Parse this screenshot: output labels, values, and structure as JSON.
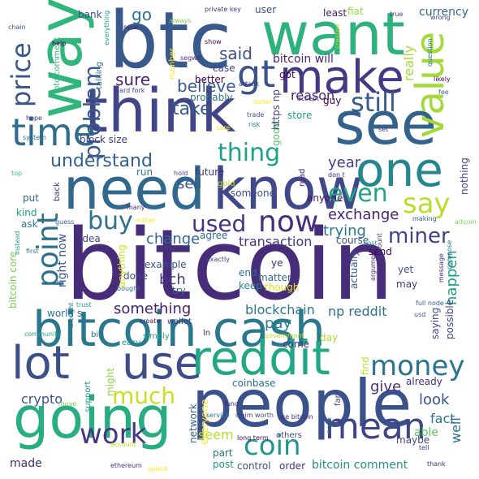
{
  "words": [
    {
      "text": "bitcoin",
      "color": "#472c7a"
    },
    {
      "text": "people",
      "color": "#3b518b"
    },
    {
      "text": "bitcoin cash",
      "color": "#2a788e"
    },
    {
      "text": "think",
      "color": "#414487"
    },
    {
      "text": "need",
      "color": "#31688e"
    },
    {
      "text": "know",
      "color": "#3f4889"
    },
    {
      "text": "btc",
      "color": "#38598c"
    },
    {
      "text": "want",
      "color": "#2db27d"
    },
    {
      "text": "going",
      "color": "#27ad81"
    },
    {
      "text": "use",
      "color": "#3e4c8a"
    },
    {
      "text": "reddit",
      "color": "#22a785"
    },
    {
      "text": "see",
      "color": "#33638d"
    },
    {
      "text": "way",
      "color": "#30b57c"
    },
    {
      "text": "make",
      "color": "#443983"
    },
    {
      "text": "one",
      "color": "#24878e"
    },
    {
      "text": "time",
      "color": "#2e6d8e"
    },
    {
      "text": "value",
      "color": "#a2da37"
    },
    {
      "text": "lot",
      "color": "#3c4f8a"
    },
    {
      "text": "mean",
      "color": "#404588"
    },
    {
      "text": "coin",
      "color": "#1f968b"
    },
    {
      "text": "work",
      "color": "#453781"
    },
    {
      "text": "money",
      "color": "#2b748e"
    },
    {
      "text": "say",
      "color": "#b8de29"
    },
    {
      "text": "point",
      "color": "#2c718e"
    },
    {
      "text": "price",
      "color": "#39568c"
    },
    {
      "text": "used",
      "color": "#46327e"
    },
    {
      "text": "now",
      "color": "#472d7b"
    },
    {
      "text": "gt",
      "color": "#3b528b"
    },
    {
      "text": "still",
      "color": "#375a8c"
    },
    {
      "text": "thing",
      "color": "#1fa088"
    },
    {
      "text": "even",
      "color": "#20a486"
    },
    {
      "text": "buy",
      "color": "#2d718e"
    },
    {
      "text": "much",
      "color": "#c8e020"
    },
    {
      "text": "problem",
      "color": "#38598c"
    },
    {
      "text": "miner",
      "color": "#424186"
    },
    {
      "text": "go",
      "color": "#2e6e8e"
    },
    {
      "text": "believe",
      "color": "#375b8d"
    },
    {
      "text": "said",
      "color": "#3d4d8a"
    },
    {
      "text": "take",
      "color": "#38598c"
    },
    {
      "text": "sure",
      "color": "#482475"
    },
    {
      "text": "understand",
      "color": "#34618d"
    },
    {
      "text": "sell",
      "color": "#3a548c"
    },
    {
      "text": "year",
      "color": "#414287"
    },
    {
      "text": "reason",
      "color": "#481f70"
    },
    {
      "text": "bitcoin will",
      "color": "#482677"
    },
    {
      "text": "change",
      "color": "#31678e"
    },
    {
      "text": "exchange",
      "color": "#482374"
    },
    {
      "text": "trying",
      "color": "#2a778e"
    },
    {
      "text": "transaction",
      "color": "#453581"
    },
    {
      "text": "right now",
      "color": "#39568c"
    },
    {
      "text": "something",
      "color": "#482374"
    },
    {
      "text": "blockchain",
      "color": "#2a788e"
    },
    {
      "text": "np reddit",
      "color": "#2d708e"
    },
    {
      "text": "pay",
      "color": "#26828e"
    },
    {
      "text": "bch",
      "color": "#453882"
    },
    {
      "text": "crypto",
      "color": "#3b528b"
    },
    {
      "text": "give",
      "color": "#46337f"
    },
    {
      "text": "look",
      "color": "#39558c"
    },
    {
      "text": "fact",
      "color": "#2c728e"
    },
    {
      "text": "well",
      "color": "#2d708e"
    },
    {
      "text": "seem",
      "color": "#b5de2b"
    },
    {
      "text": "happen",
      "color": "#1fa187"
    },
    {
      "text": "really",
      "color": "#a5db36"
    },
    {
      "text": "currency",
      "color": "#31678e"
    },
    {
      "text": "bitcoin comment",
      "color": "#21918c"
    },
    {
      "text": "network",
      "color": "#33638d"
    },
    {
      "text": "made",
      "color": "#482979"
    },
    {
      "text": "able",
      "color": "#5cc863"
    },
    {
      "text": "maybe",
      "color": "#3f4788"
    },
    {
      "text": "block size",
      "color": "#433e85"
    },
    {
      "text": "run",
      "color": "#24868e"
    },
    {
      "text": "future",
      "color": "#46307e"
    },
    {
      "text": "good",
      "color": "#56c667"
    },
    {
      "text": "store",
      "color": "#1fa187"
    },
    {
      "text": "guy",
      "color": "#440154"
    },
    {
      "text": "https np",
      "color": "#414487"
    },
    {
      "text": "someone",
      "color": "#3d4e8a"
    },
    {
      "text": "anyone",
      "color": "#481467"
    },
    {
      "text": "read",
      "color": "#482576"
    },
    {
      "text": "nothing",
      "color": "#404588"
    },
    {
      "text": "put",
      "color": "#33628d"
    },
    {
      "text": "kind",
      "color": "#1f9e89"
    },
    {
      "text": "ask",
      "color": "#2a788e"
    },
    {
      "text": "back",
      "color": "#472f7d"
    },
    {
      "text": "idea",
      "color": "#414487"
    },
    {
      "text": "agree",
      "color": "#31688e"
    },
    {
      "text": "course",
      "color": "#3a538b"
    },
    {
      "text": "send",
      "color": "#440154"
    },
    {
      "text": "yet",
      "color": "#3b518b"
    },
    {
      "text": "may",
      "color": "#453781"
    },
    {
      "text": "actually",
      "color": "#38598c"
    },
    {
      "text": "ye",
      "color": "#472a7a"
    },
    {
      "text": "matter",
      "color": "#2f6c8e"
    },
    {
      "text": "though",
      "color": "#dde318"
    },
    {
      "text": "keep",
      "color": "#24868e"
    },
    {
      "text": "end",
      "color": "#2c718e"
    },
    {
      "text": "example",
      "color": "#3b518b"
    },
    {
      "text": "done",
      "color": "#3f4889"
    },
    {
      "text": "try",
      "color": "#33628d"
    },
    {
      "text": "world s",
      "color": "#2a788e"
    },
    {
      "text": "bitcoin core",
      "color": "#7ad151"
    },
    {
      "text": "anything",
      "color": "#d2e21b"
    },
    {
      "text": "come",
      "color": "#46337f"
    },
    {
      "text": "day",
      "color": "#a8db34"
    },
    {
      "text": "saying",
      "color": "#3e4989"
    },
    {
      "text": "possible",
      "color": "#404588"
    },
    {
      "text": "already",
      "color": "#472d7b"
    },
    {
      "text": "coinbase",
      "color": "#2e6d8e"
    },
    {
      "text": "find",
      "color": "#bddf26"
    },
    {
      "text": "support",
      "color": "#1f988b"
    },
    {
      "text": "might",
      "color": "#8fd744"
    },
    {
      "text": "others",
      "color": "#404688"
    },
    {
      "text": "control",
      "color": "#3b528b"
    },
    {
      "text": "order",
      "color": "#472f7d"
    },
    {
      "text": "post",
      "color": "#1f9a8a"
    },
    {
      "text": "part",
      "color": "#2e6e8e"
    },
    {
      "text": "everyone",
      "color": "#fde725"
    },
    {
      "text": "far",
      "color": "#453882"
    },
    {
      "text": "gold",
      "color": "#c0df25"
    },
    {
      "text": "bank",
      "color": "#3e4a89"
    },
    {
      "text": "better",
      "color": "#440154"
    },
    {
      "text": "probably",
      "color": "#2c728e"
    },
    {
      "text": "case",
      "color": "#3f4788"
    },
    {
      "text": "user",
      "color": "#3b528b"
    },
    {
      "text": "fiat",
      "color": "#94d840"
    },
    {
      "text": "least",
      "color": "#481b6d"
    },
    {
      "text": "got",
      "color": "#440154"
    },
    {
      "text": "number",
      "color": "#fde725"
    },
    {
      "text": "talking",
      "color": "#31688e"
    },
    {
      "text": "btc comment",
      "color": "#35b779"
    },
    {
      "text": "ln",
      "color": "#482173"
    },
    {
      "text": "bit",
      "color": "#2e6d8e"
    },
    {
      "text": "easy",
      "color": "#21918c"
    },
    {
      "text": "simply",
      "color": "#22a884"
    },
    {
      "text": "create",
      "color": "#48186a"
    },
    {
      "text": "wallet",
      "color": "#453781"
    },
    {
      "text": "government",
      "color": "#c2df23"
    },
    {
      "text": "community",
      "color": "#1f9e89"
    },
    {
      "text": "thought",
      "color": "#2e6e8e"
    },
    {
      "text": "trust",
      "color": "#1f9e89"
    },
    {
      "text": "first",
      "color": "#2c738e"
    },
    {
      "text": "instead",
      "color": "#1e9c89"
    },
    {
      "text": "guess",
      "color": "#33638d"
    },
    {
      "text": "many",
      "color": "#482878"
    },
    {
      "text": "either",
      "color": "#fde725"
    },
    {
      "text": "today",
      "color": "#414487"
    },
    {
      "text": "bought",
      "color": "#31688e"
    },
    {
      "text": "fund",
      "color": "#482475"
    },
    {
      "text": "claim",
      "color": "#433e85"
    },
    {
      "text": "worth",
      "color": "#3f4788"
    },
    {
      "text": "service",
      "color": "#2a778e"
    },
    {
      "text": "use bitcoin",
      "color": "#482878"
    },
    {
      "text": "long term",
      "color": "#440154"
    },
    {
      "text": "ethereum",
      "color": "#472c7a"
    },
    {
      "text": "spend",
      "color": "#fde725"
    },
    {
      "text": "account",
      "color": "#c2df23"
    },
    {
      "text": "move",
      "color": "#7ad151"
    },
    {
      "text": "node",
      "color": "#2c728e"
    },
    {
      "text": "tell",
      "color": "#404588"
    },
    {
      "text": "thank",
      "color": "#453781"
    },
    {
      "text": "full node",
      "color": "#33628d"
    },
    {
      "text": "usd",
      "color": "#3b528b"
    },
    {
      "text": "altcoin",
      "color": "#7ad151"
    },
    {
      "text": "message",
      "color": "#482878"
    },
    {
      "text": "compose",
      "color": "#2c728e"
    },
    {
      "text": "argument",
      "color": "#472c7a"
    },
    {
      "text": "amount",
      "color": "#453781"
    },
    {
      "text": "cost",
      "color": "#1f9e89"
    },
    {
      "text": "making",
      "color": "#33628d"
    },
    {
      "text": "exactly",
      "color": "#414487"
    },
    {
      "text": "hold",
      "color": "#404588"
    },
    {
      "text": "don t",
      "color": "#482475"
    },
    {
      "text": "set",
      "color": "#453781"
    },
    {
      "text": "care",
      "color": "#fde725"
    },
    {
      "text": "risk",
      "color": "#2a788e"
    },
    {
      "text": "trade",
      "color": "#3e4989"
    },
    {
      "text": "attack",
      "color": "#433e85"
    },
    {
      "text": "dollar",
      "color": "#fde725"
    },
    {
      "text": "accept",
      "color": "#453781"
    },
    {
      "text": "hard fork",
      "color": "#404588"
    },
    {
      "text": "segwit",
      "color": "#472c7a"
    },
    {
      "text": "show",
      "color": "#440154"
    },
    {
      "text": "private key",
      "color": "#453781"
    },
    {
      "text": "issue",
      "color": "#482475"
    },
    {
      "text": "always",
      "color": "#7ad151"
    },
    {
      "text": "everything",
      "color": "#1f9e89"
    },
    {
      "text": "help",
      "color": "#440154"
    },
    {
      "text": "chain",
      "color": "#3b528b"
    },
    {
      "text": "hope",
      "color": "#482878"
    },
    {
      "text": "system",
      "color": "#2c728e"
    },
    {
      "text": "top",
      "color": "#35b779"
    },
    {
      "text": "created",
      "color": "#b5de2b"
    },
    {
      "text": "question",
      "color": "#2c728e"
    },
    {
      "text": "wrong",
      "color": "#404588"
    },
    {
      "text": "true",
      "color": "#453781"
    },
    {
      "text": "likely",
      "color": "#440154"
    },
    {
      "text": "fee",
      "color": "#33628d"
    }
  ]
}
